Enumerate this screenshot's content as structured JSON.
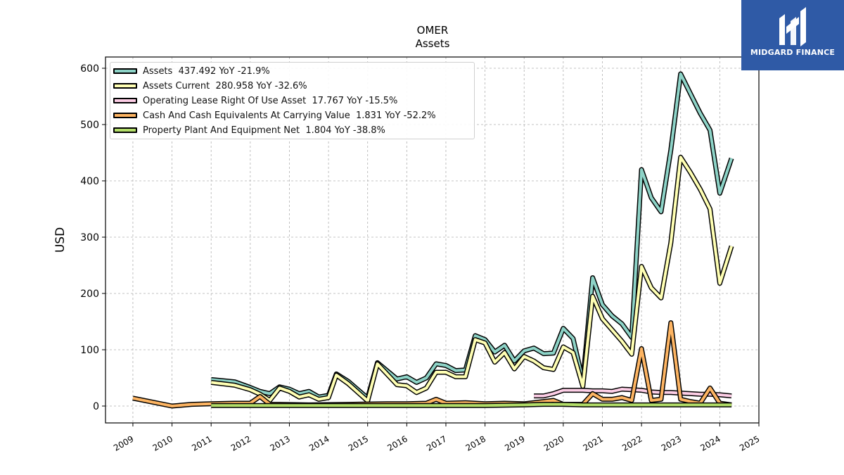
{
  "chart_data": {
    "type": "line",
    "title": "OMER",
    "subtitle": "Assets",
    "ylabel": "USD",
    "xlabel": "",
    "xlim": [
      2008.3,
      2025
    ],
    "ylim": [
      -30,
      620
    ],
    "yticks": [
      0,
      100,
      200,
      300,
      400,
      500,
      600
    ],
    "xticks": [
      "2009",
      "2010",
      "2011",
      "2012",
      "2013",
      "2014",
      "2015",
      "2016",
      "2017",
      "2018",
      "2019",
      "2020",
      "2021",
      "2022",
      "2023",
      "2024",
      "2025"
    ],
    "grid": true,
    "legend_position": "top-left",
    "series": [
      {
        "name": "Assets",
        "legend": "Assets  437.492 YoY -21.9%",
        "color": "#8dd3c7",
        "points": [
          [
            2011.0,
            47
          ],
          [
            2011.6,
            43
          ],
          [
            2012.0,
            33
          ],
          [
            2012.25,
            26
          ],
          [
            2012.5,
            22
          ],
          [
            2012.75,
            34
          ],
          [
            2013.0,
            30
          ],
          [
            2013.25,
            22
          ],
          [
            2013.5,
            26
          ],
          [
            2013.75,
            16
          ],
          [
            2014.0,
            19
          ],
          [
            2014.2,
            57
          ],
          [
            2014.5,
            44
          ],
          [
            2015.0,
            14
          ],
          [
            2015.25,
            77
          ],
          [
            2015.75,
            48
          ],
          [
            2016.0,
            52
          ],
          [
            2016.25,
            42
          ],
          [
            2016.5,
            50
          ],
          [
            2016.75,
            75
          ],
          [
            2017.0,
            72
          ],
          [
            2017.25,
            63
          ],
          [
            2017.5,
            64
          ],
          [
            2017.75,
            125
          ],
          [
            2018.0,
            118
          ],
          [
            2018.25,
            96
          ],
          [
            2018.5,
            108
          ],
          [
            2018.75,
            80
          ],
          [
            2019.0,
            98
          ],
          [
            2019.25,
            103
          ],
          [
            2019.5,
            93
          ],
          [
            2019.75,
            94
          ],
          [
            2020.0,
            138
          ],
          [
            2020.25,
            120
          ],
          [
            2020.5,
            45
          ],
          [
            2020.75,
            228
          ],
          [
            2021.0,
            180
          ],
          [
            2021.25,
            160
          ],
          [
            2021.5,
            146
          ],
          [
            2021.75,
            122
          ],
          [
            2022.0,
            420
          ],
          [
            2022.25,
            370
          ],
          [
            2022.5,
            345
          ],
          [
            2022.75,
            455
          ],
          [
            2023.0,
            590
          ],
          [
            2023.25,
            555
          ],
          [
            2023.5,
            520
          ],
          [
            2023.75,
            490
          ],
          [
            2024.0,
            378
          ],
          [
            2024.3,
            440
          ]
        ]
      },
      {
        "name": "Assets Current",
        "legend": "Assets Current  280.958 YoY -32.6%",
        "color": "#ffffb3",
        "points": [
          [
            2011.0,
            42
          ],
          [
            2011.6,
            37
          ],
          [
            2012.0,
            29
          ],
          [
            2012.25,
            21
          ],
          [
            2012.5,
            10
          ],
          [
            2012.75,
            32
          ],
          [
            2013.0,
            26
          ],
          [
            2013.25,
            16
          ],
          [
            2013.5,
            20
          ],
          [
            2013.75,
            12
          ],
          [
            2014.0,
            15
          ],
          [
            2014.2,
            55
          ],
          [
            2014.5,
            40
          ],
          [
            2015.0,
            9
          ],
          [
            2015.25,
            75
          ],
          [
            2015.75,
            38
          ],
          [
            2016.0,
            36
          ],
          [
            2016.25,
            24
          ],
          [
            2016.5,
            32
          ],
          [
            2016.75,
            60
          ],
          [
            2017.0,
            60
          ],
          [
            2017.25,
            52
          ],
          [
            2017.5,
            52
          ],
          [
            2017.75,
            118
          ],
          [
            2018.0,
            112
          ],
          [
            2018.25,
            78
          ],
          [
            2018.5,
            95
          ],
          [
            2018.75,
            66
          ],
          [
            2019.0,
            88
          ],
          [
            2019.25,
            80
          ],
          [
            2019.5,
            68
          ],
          [
            2019.75,
            65
          ],
          [
            2020.0,
            105
          ],
          [
            2020.25,
            95
          ],
          [
            2020.5,
            35
          ],
          [
            2020.75,
            195
          ],
          [
            2021.0,
            155
          ],
          [
            2021.25,
            135
          ],
          [
            2021.5,
            115
          ],
          [
            2021.75,
            92
          ],
          [
            2022.0,
            248
          ],
          [
            2022.25,
            210
          ],
          [
            2022.5,
            192
          ],
          [
            2022.75,
            290
          ],
          [
            2023.0,
            442
          ],
          [
            2023.25,
            415
          ],
          [
            2023.5,
            385
          ],
          [
            2023.75,
            350
          ],
          [
            2024.0,
            218
          ],
          [
            2024.3,
            284
          ]
        ]
      },
      {
        "name": "Operating Lease Right Of Use Asset",
        "legend": "Operating Lease Right Of Use Asset  17.767 YoY -15.5%",
        "color": "#fccde5",
        "points": [
          [
            2019.25,
            18
          ],
          [
            2019.5,
            18
          ],
          [
            2019.75,
            22
          ],
          [
            2020.0,
            28
          ],
          [
            2020.25,
            28
          ],
          [
            2020.5,
            28
          ],
          [
            2020.75,
            27
          ],
          [
            2021.0,
            27
          ],
          [
            2021.25,
            26
          ],
          [
            2021.5,
            30
          ],
          [
            2021.75,
            29
          ],
          [
            2022.0,
            28
          ],
          [
            2022.25,
            25
          ],
          [
            2022.5,
            24
          ],
          [
            2022.75,
            24
          ],
          [
            2023.0,
            23
          ],
          [
            2023.25,
            22
          ],
          [
            2023.5,
            21
          ],
          [
            2023.75,
            21
          ],
          [
            2024.0,
            20
          ],
          [
            2024.3,
            18
          ]
        ]
      },
      {
        "name": "Cash And Cash Equivalents At Carrying Value",
        "legend": "Cash And Cash Equivalents At Carrying Value  1.831 YoY -52.2%",
        "color": "#fdb462",
        "points": [
          [
            2009.0,
            14
          ],
          [
            2010.0,
            0
          ],
          [
            2010.5,
            3
          ],
          [
            2011.0,
            4
          ],
          [
            2011.6,
            5
          ],
          [
            2012.0,
            5
          ],
          [
            2012.25,
            17
          ],
          [
            2012.5,
            3
          ],
          [
            2012.75,
            3
          ],
          [
            2013.5,
            2
          ],
          [
            2014.5,
            3
          ],
          [
            2015.5,
            4
          ],
          [
            2016.0,
            4
          ],
          [
            2016.5,
            5
          ],
          [
            2016.75,
            12
          ],
          [
            2017.0,
            5
          ],
          [
            2017.5,
            6
          ],
          [
            2018.0,
            4
          ],
          [
            2018.5,
            5
          ],
          [
            2019.0,
            4
          ],
          [
            2019.5,
            8
          ],
          [
            2019.75,
            10
          ],
          [
            2020.0,
            3
          ],
          [
            2020.5,
            3
          ],
          [
            2020.75,
            22
          ],
          [
            2021.0,
            12
          ],
          [
            2021.25,
            12
          ],
          [
            2021.5,
            15
          ],
          [
            2021.75,
            10
          ],
          [
            2022.0,
            102
          ],
          [
            2022.25,
            10
          ],
          [
            2022.5,
            12
          ],
          [
            2022.75,
            148
          ],
          [
            2023.0,
            12
          ],
          [
            2023.25,
            8
          ],
          [
            2023.5,
            5
          ],
          [
            2023.75,
            32
          ],
          [
            2024.0,
            5
          ],
          [
            2024.3,
            2
          ]
        ]
      },
      {
        "name": "Property Plant And Equipment Net",
        "legend": "Property Plant And Equipment Net  1.804 YoY -38.8%",
        "color": "#b3de69",
        "points": [
          [
            2011.0,
            1
          ],
          [
            2012.0,
            1
          ],
          [
            2013.0,
            1
          ],
          [
            2014.0,
            1
          ],
          [
            2015.0,
            1
          ],
          [
            2016.0,
            1
          ],
          [
            2017.0,
            1
          ],
          [
            2018.0,
            1
          ],
          [
            2019.0,
            2
          ],
          [
            2019.5,
            3
          ],
          [
            2020.0,
            3
          ],
          [
            2020.5,
            2
          ],
          [
            2021.0,
            2
          ],
          [
            2021.5,
            2
          ],
          [
            2022.0,
            2
          ],
          [
            2022.5,
            2
          ],
          [
            2023.0,
            2
          ],
          [
            2023.5,
            2
          ],
          [
            2024.0,
            2
          ],
          [
            2024.3,
            2
          ]
        ]
      }
    ]
  },
  "logo": {
    "text": "MIDGARD FINANCE",
    "icon": "midgard-logo-icon",
    "bg": "#2f5aa6"
  }
}
